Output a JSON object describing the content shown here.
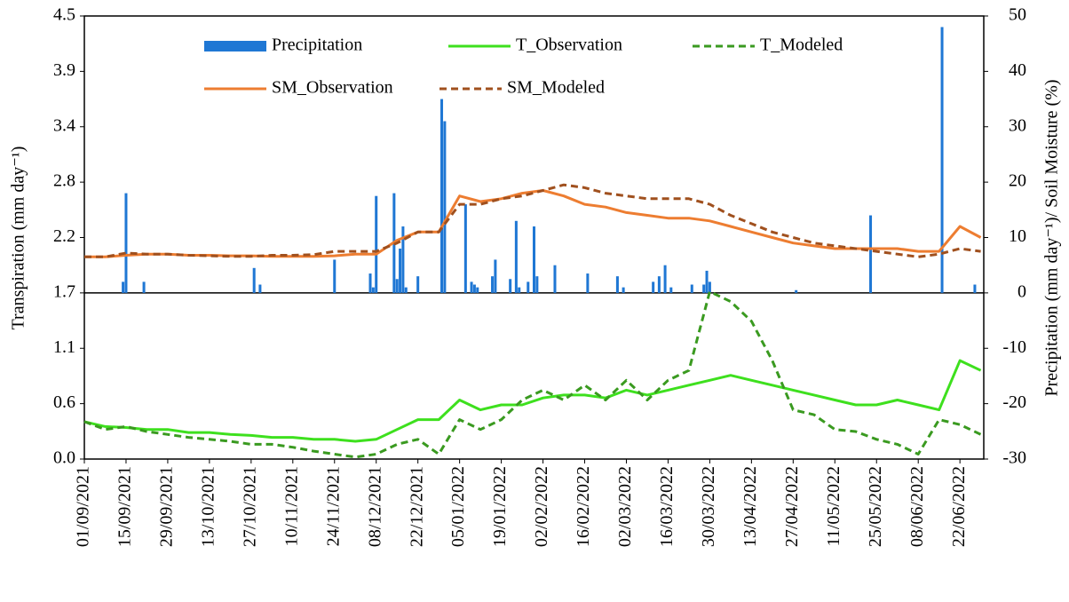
{
  "chart_data": {
    "type": "line",
    "ylabel": "Transpiration (mm day⁻¹)",
    "y2label": "Precipitation (mm day⁻¹)/ Soil Moisture (%)",
    "xlim": [
      "01/09/2021",
      "30/06/2022"
    ],
    "xticks": [
      "01/09/2021",
      "15/09/2021",
      "29/09/2021",
      "13/10/2021",
      "27/10/2021",
      "10/11/2021",
      "24/11/2021",
      "08/12/2021",
      "22/12/2021",
      "05/01/2022",
      "19/01/2022",
      "02/02/2022",
      "16/02/2022",
      "02/03/2022",
      "16/03/2022",
      "30/03/2022",
      "13/04/2022",
      "27/04/2022",
      "11/05/2022",
      "25/05/2022",
      "08/06/2022",
      "22/06/2022"
    ],
    "ylim": [
      0,
      4.5
    ],
    "yticks": [
      {
        "value": 0,
        "label": "0.0"
      },
      {
        "value": 0.5625,
        "label": "0.6"
      },
      {
        "value": 1.125,
        "label": "1.1"
      },
      {
        "value": 1.6875,
        "label": "1.7"
      },
      {
        "value": 2.25,
        "label": "2.2"
      },
      {
        "value": 2.8125,
        "label": "2.8"
      },
      {
        "value": 3.375,
        "label": "3.4"
      },
      {
        "value": 3.9375,
        "label": "3.9"
      },
      4.5
    ],
    "y2lim": [
      -30,
      50
    ],
    "y2ticks": [
      -30,
      -20,
      -10,
      0,
      10,
      20,
      30,
      40,
      50
    ],
    "x": [
      "01/09/2021",
      "08/09/2021",
      "15/09/2021",
      "22/09/2021",
      "29/09/2021",
      "06/10/2021",
      "13/10/2021",
      "20/10/2021",
      "27/10/2021",
      "03/11/2021",
      "10/11/2021",
      "17/11/2021",
      "24/11/2021",
      "01/12/2021",
      "08/12/2021",
      "15/12/2021",
      "22/12/2021",
      "29/12/2021",
      "05/01/2022",
      "12/01/2022",
      "19/01/2022",
      "26/01/2022",
      "02/02/2022",
      "09/02/2022",
      "16/02/2022",
      "23/02/2022",
      "02/03/2022",
      "09/03/2022",
      "16/03/2022",
      "23/03/2022",
      "30/03/2022",
      "06/04/2022",
      "13/04/2022",
      "20/04/2022",
      "27/04/2022",
      "04/05/2022",
      "11/05/2022",
      "18/05/2022",
      "25/05/2022",
      "01/06/2022",
      "08/06/2022",
      "15/06/2022",
      "22/06/2022",
      "29/06/2022"
    ],
    "series": [
      {
        "name": "Precipitation",
        "type": "bar",
        "axis": "y2",
        "color": "#1f77d4",
        "x": [
          "14/09/2021",
          "15/09/2021",
          "21/09/2021",
          "28/10/2021",
          "30/10/2021",
          "24/11/2021",
          "06/12/2021",
          "07/12/2021",
          "08/12/2021",
          "14/12/2021",
          "15/12/2021",
          "16/12/2021",
          "17/12/2021",
          "18/12/2021",
          "22/12/2021",
          "30/12/2021",
          "31/12/2021",
          "07/01/2022",
          "09/01/2022",
          "10/01/2022",
          "11/01/2022",
          "16/01/2022",
          "17/01/2022",
          "22/01/2022",
          "24/01/2022",
          "25/01/2022",
          "28/01/2022",
          "30/01/2022",
          "31/01/2022",
          "06/02/2022",
          "17/02/2022",
          "27/02/2022",
          "01/03/2022",
          "11/03/2022",
          "13/03/2022",
          "15/03/2022",
          "17/03/2022",
          "24/03/2022",
          "28/03/2022",
          "29/03/2022",
          "30/03/2022",
          "28/04/2022",
          "23/05/2022",
          "16/06/2022",
          "27/06/2022"
        ],
        "values": [
          2,
          18,
          2,
          4.5,
          1.5,
          6,
          3.5,
          1,
          17.5,
          18,
          2.5,
          8,
          12,
          1,
          3,
          35,
          31,
          16,
          2,
          1.5,
          1,
          3,
          6,
          2.5,
          13,
          1,
          2,
          12,
          3,
          5,
          3.5,
          3,
          1,
          2,
          3,
          5,
          1,
          1.5,
          1.5,
          4,
          2,
          0.5,
          14,
          48,
          1.5
        ]
      },
      {
        "name": "T_Observation",
        "color": "#3ee01e",
        "dash": false,
        "values": [
          0.38,
          0.33,
          0.32,
          0.3,
          0.3,
          0.27,
          0.27,
          0.25,
          0.24,
          0.22,
          0.22,
          0.2,
          0.2,
          0.18,
          0.2,
          0.3,
          0.4,
          0.4,
          0.6,
          0.5,
          0.55,
          0.55,
          0.62,
          0.65,
          0.65,
          0.62,
          0.7,
          0.65,
          0.7,
          0.75,
          0.8,
          0.85,
          0.8,
          0.75,
          0.7,
          0.65,
          0.6,
          0.55,
          0.55,
          0.6,
          0.55,
          0.5,
          1.0,
          0.9
        ]
      },
      {
        "name": "T_Modeled",
        "color": "#3a9a20",
        "dash": true,
        "values": [
          0.38,
          0.3,
          0.33,
          0.28,
          0.25,
          0.22,
          0.2,
          0.18,
          0.15,
          0.15,
          0.12,
          0.08,
          0.05,
          0.02,
          0.05,
          0.15,
          0.2,
          0.05,
          0.4,
          0.3,
          0.4,
          0.6,
          0.7,
          0.6,
          0.75,
          0.6,
          0.8,
          0.6,
          0.8,
          0.9,
          1.7,
          1.6,
          1.4,
          1.0,
          0.5,
          0.45,
          0.3,
          0.28,
          0.2,
          0.15,
          0.05,
          0.4,
          0.35,
          0.25
        ]
      },
      {
        "name": "SM_Observation",
        "axis": "y2",
        "color": "#ed7d31",
        "dash": false,
        "values": [
          6.5,
          6.5,
          6.8,
          7,
          7,
          6.8,
          6.8,
          6.7,
          6.7,
          6.6,
          6.6,
          6.6,
          6.7,
          7,
          7,
          9.5,
          11,
          11,
          17.5,
          16.5,
          17,
          18,
          18.5,
          17.5,
          16,
          15.5,
          14.5,
          14,
          13.5,
          13.5,
          13,
          12,
          11,
          10,
          9,
          8.5,
          8,
          8,
          8,
          8,
          7.5,
          7.5,
          12,
          10
        ]
      },
      {
        "name": "SM_Modeled",
        "axis": "y2",
        "color": "#a0501e",
        "dash": true,
        "values": [
          6.5,
          6.5,
          7.2,
          7,
          7,
          6.8,
          6.7,
          6.6,
          6.6,
          6.8,
          6.8,
          6.9,
          7.5,
          7.5,
          7.5,
          9,
          11,
          11,
          16,
          16,
          17,
          17.5,
          18.5,
          19.5,
          19,
          18,
          17.5,
          17,
          17,
          17,
          16,
          14,
          12.5,
          11,
          10,
          9,
          8.5,
          8,
          7.5,
          7,
          6.5,
          7,
          8,
          7.5
        ]
      }
    ],
    "legend": "top"
  }
}
